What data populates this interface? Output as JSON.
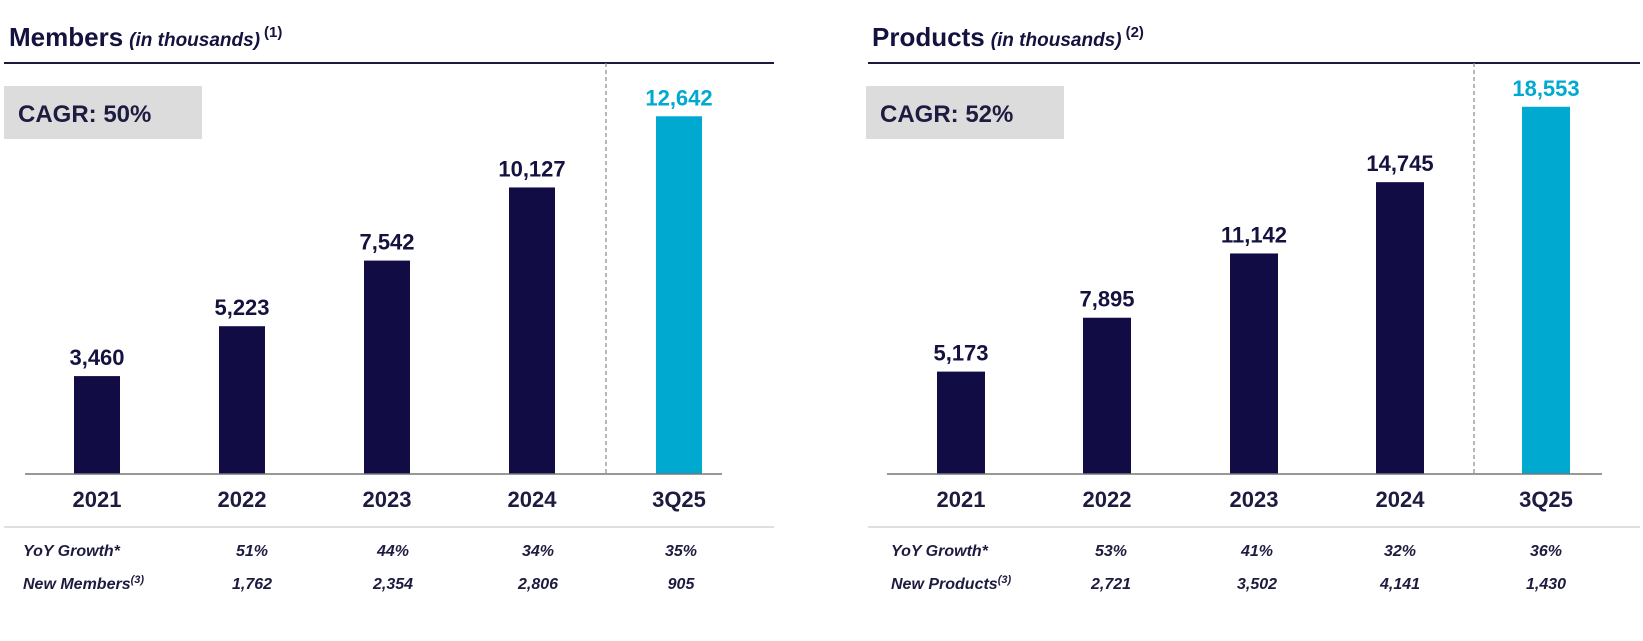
{
  "colors": {
    "bar": "#120c45",
    "highlight_bar": "#00a9cf",
    "text": "#14123f",
    "cagr_box": "#dcdcdc",
    "axis": "#777777",
    "rule": "#1a1a3a",
    "table_rule": "#cccccc"
  },
  "chart_data": [
    {
      "type": "bar",
      "title": "Members",
      "subtitle": "(in thousands)",
      "footnote": "(1)",
      "cagr_label": "CAGR: 50%",
      "categories": [
        "2021",
        "2022",
        "2023",
        "2024",
        "3Q25"
      ],
      "values": [
        3460,
        5223,
        7542,
        10127,
        12642
      ],
      "value_labels": [
        "3,460",
        "5,223",
        "7,542",
        "10,127",
        "12,642"
      ],
      "highlight_index": 4,
      "ylim": [
        0,
        13500
      ],
      "rows": [
        {
          "label": "YoY Growth*",
          "label_sup": "",
          "values": [
            "51%",
            "44%",
            "34%",
            "35%"
          ]
        },
        {
          "label": "New Members",
          "label_sup": "(3)",
          "values": [
            "1,762",
            "2,354",
            "2,806",
            "905"
          ]
        }
      ]
    },
    {
      "type": "bar",
      "title": "Products",
      "subtitle": "(in thousands)",
      "footnote": "(2)",
      "cagr_label": "CAGR: 52%",
      "categories": [
        "2021",
        "2022",
        "2023",
        "2024",
        "3Q25"
      ],
      "values": [
        5173,
        7895,
        11142,
        14745,
        18553
      ],
      "value_labels": [
        "5,173",
        "7,895",
        "11,142",
        "14,745",
        "18,553"
      ],
      "highlight_index": 4,
      "ylim": [
        0,
        19300
      ],
      "rows": [
        {
          "label": "YoY Growth*",
          "label_sup": "",
          "values": [
            "53%",
            "41%",
            "32%",
            "36%"
          ]
        },
        {
          "label": "New Products",
          "label_sup": "(3)",
          "values": [
            "2,721",
            "3,502",
            "4,141",
            "1,430"
          ]
        }
      ]
    }
  ]
}
